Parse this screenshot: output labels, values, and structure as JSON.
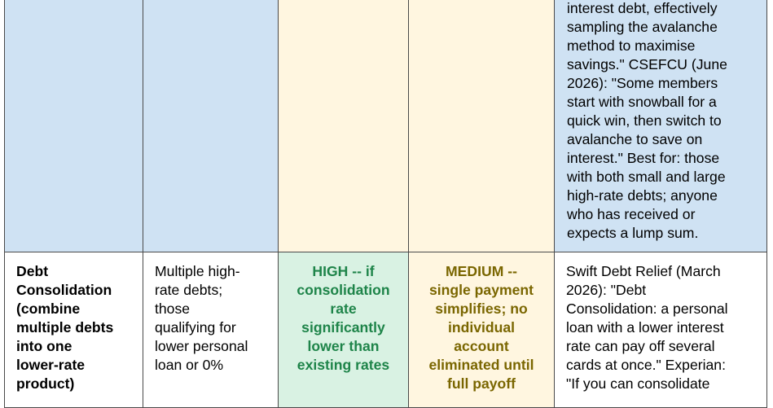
{
  "top_row": {
    "notes_lines": [
      "interest debt, effectively",
      "sampling the avalanche",
      "method to maximise",
      "savings.\" CSEFCU (June",
      "2026): \"Some members",
      "start with snowball for a",
      "quick win, then switch to",
      "avalanche to save on",
      "interest.\" Best for: those",
      "with both small and large",
      "high-rate debts; anyone",
      "who has received or",
      "expects a lump sum."
    ]
  },
  "bottom_row": {
    "strategy_lines": [
      "Debt",
      "Consolidation",
      "(combine",
      "multiple debts",
      "into one",
      "lower-rate",
      "product)"
    ],
    "who_lines": [
      "Multiple high-",
      "rate debts;",
      "those",
      "qualifying for",
      "lower personal",
      "loan or 0%"
    ],
    "savings_lines": [
      "HIGH -- if",
      "consolidation",
      "rate",
      "significantly",
      "lower than",
      "existing rates"
    ],
    "motivation_lines": [
      "MEDIUM --",
      "single payment",
      "simplifies; no",
      "individual",
      "account",
      "eliminated until",
      "full payoff"
    ],
    "notes_lines": [
      "Swift Debt Relief (March",
      "2026): \"Debt",
      "Consolidation: a personal",
      "loan with a lower interest",
      "rate can pay off several",
      "cards at once.\" Experian:",
      "\"If you can consolidate"
    ]
  },
  "colors": {
    "blue_fill": "#cfe2f3",
    "green_fill": "#d9f2e3",
    "cream_fill": "#fff6e0",
    "green_text": "#1e8449",
    "gold_text": "#7a6600"
  }
}
